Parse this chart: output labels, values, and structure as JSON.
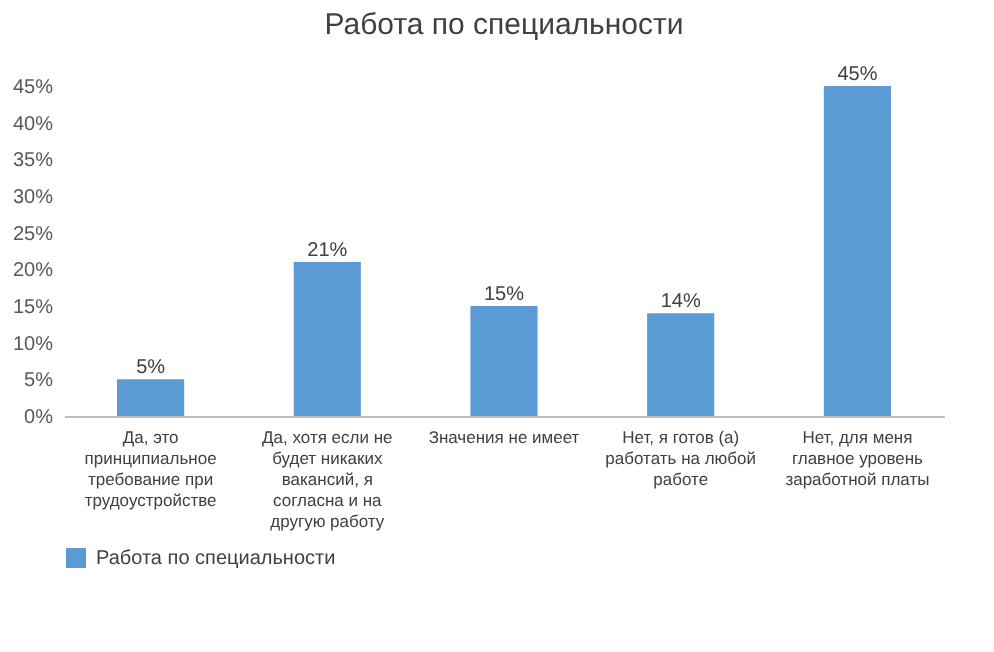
{
  "chart_data": {
    "type": "bar",
    "title": "Работа по специальности",
    "categories": [
      "Да, это принципиальное требование при трудоустройстве",
      "Да, хотя если не будет никаких вакансий, я согласна и на другую работу",
      "Значения не имеет",
      "Нет, я готов (а) работать на любой работе",
      "Нет, для меня главное уровень заработной платы"
    ],
    "series": [
      {
        "name": "Работа по специальности",
        "color": "#5b9bd5",
        "values": [
          5,
          21,
          15,
          14,
          45
        ],
        "value_labels": [
          "5%",
          "21%",
          "15%",
          "14%",
          "45%"
        ]
      }
    ],
    "ylim": [
      0,
      45
    ],
    "yticks": [
      {
        "value": 0,
        "label": "0%"
      },
      {
        "value": 5,
        "label": "5%"
      },
      {
        "value": 10,
        "label": "10%"
      },
      {
        "value": 15,
        "label": "15%"
      },
      {
        "value": 20,
        "label": "20%"
      },
      {
        "value": 25,
        "label": "25%"
      },
      {
        "value": 30,
        "label": "30%"
      },
      {
        "value": 35,
        "label": "35%"
      },
      {
        "value": 40,
        "label": "40%"
      },
      {
        "value": 45,
        "label": "45%"
      }
    ],
    "grid": false,
    "legend": "bottom"
  }
}
